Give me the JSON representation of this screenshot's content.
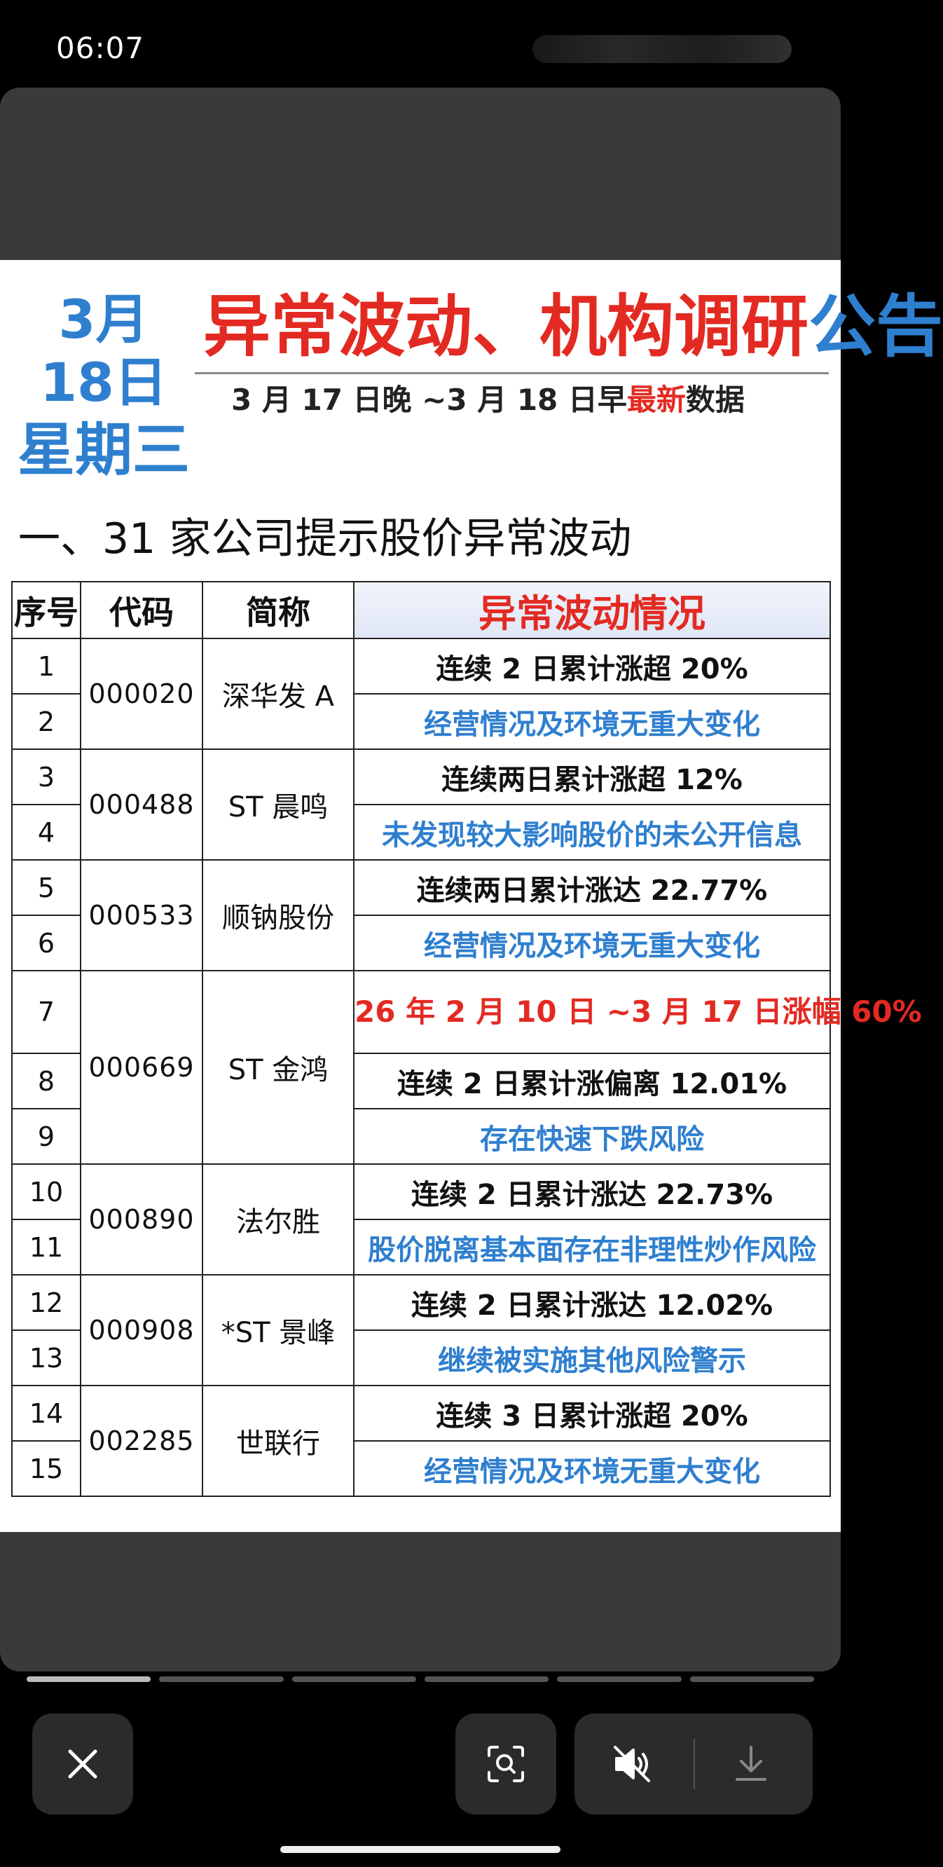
{
  "status_bar": {
    "time": "06:07"
  },
  "header": {
    "date": "3月 18日",
    "weekday": "星期三",
    "title_red": "异常波动、机构调研",
    "title_blue": "公告",
    "subtitle_prefix": "3 月 17 日晚 ~3 月 18 日早",
    "subtitle_red": "最新",
    "subtitle_suffix": "数据"
  },
  "section": {
    "heading": "一、31 家公司提示股价异常波动"
  },
  "table": {
    "headers": {
      "no": "序号",
      "code": "代码",
      "abbr": "简称",
      "status": "异常波动情况"
    },
    "groups": [
      {
        "code": "000020",
        "abbr": "深华发 A",
        "rows": [
          {
            "no": "1",
            "text": "连续 2 日累计涨超 20%",
            "style": "bold"
          },
          {
            "no": "2",
            "text": "经营情况及环境无重大变化",
            "style": "blue"
          }
        ]
      },
      {
        "code": "000488",
        "abbr": "ST 晨鸣",
        "rows": [
          {
            "no": "3",
            "text": "连续两日累计涨超 12%",
            "style": "bold"
          },
          {
            "no": "4",
            "text": "未发现较大影响股价的未公开信息",
            "style": "blue"
          }
        ]
      },
      {
        "code": "000533",
        "abbr": "顺钠股份",
        "rows": [
          {
            "no": "5",
            "text": "连续两日累计涨达 22.77%",
            "style": "bold"
          },
          {
            "no": "6",
            "text": "经营情况及环境无重大变化",
            "style": "blue"
          }
        ]
      },
      {
        "code": "000669",
        "abbr": "ST 金鸿",
        "rows": [
          {
            "no": "7",
            "text": "26 年 2 月 10 日 ~3 月 17 日涨幅 60%",
            "style": "red"
          },
          {
            "no": "8",
            "text": "连续 2 日累计涨偏离 12.01%",
            "style": "bold"
          },
          {
            "no": "9",
            "text": "存在快速下跌风险",
            "style": "blue"
          }
        ]
      },
      {
        "code": "000890",
        "abbr": "法尔胜",
        "rows": [
          {
            "no": "10",
            "text": "连续 2 日累计涨达 22.73%",
            "style": "bold"
          },
          {
            "no": "11",
            "text": "股价脱离基本面存在非理性炒作风险",
            "style": "blue"
          }
        ]
      },
      {
        "code": "000908",
        "abbr": "*ST 景峰",
        "rows": [
          {
            "no": "12",
            "text": "连续 2 日累计涨达 12.02%",
            "style": "bold"
          },
          {
            "no": "13",
            "text": "继续被实施其他风险警示",
            "style": "blue"
          }
        ]
      },
      {
        "code": "002285",
        "abbr": "世联行",
        "rows": [
          {
            "no": "14",
            "text": "连续 3 日累计涨超 20%",
            "style": "bold"
          },
          {
            "no": "15",
            "text": "经营情况及环境无重大变化",
            "style": "blue"
          }
        ]
      }
    ]
  },
  "viewer": {
    "page_count": 6,
    "current_page": 1,
    "icons": {
      "close": "close-icon",
      "lens": "visual-search-icon",
      "mute": "mute-icon",
      "download": "download-icon"
    },
    "colors": {
      "accent_red": "#e32a22",
      "accent_blue": "#2f7fcf",
      "viewer_bg": "#3a3a3a"
    }
  }
}
